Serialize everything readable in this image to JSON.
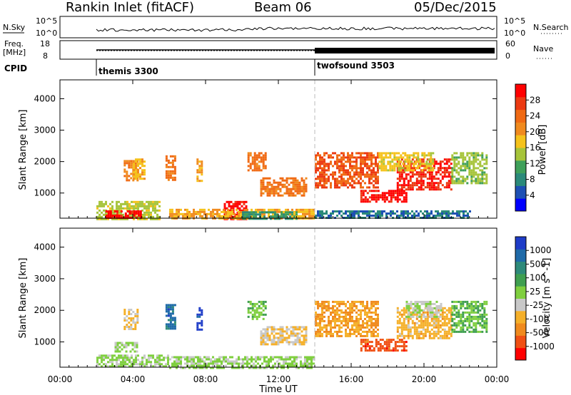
{
  "header": {
    "station": "Rankin Inlet (fitACF)",
    "beam": "Beam 06",
    "date": "05/Dec/2015"
  },
  "top_panels": {
    "nsky_label": "N.Sky",
    "nsky_ticks": [
      "10^5",
      "10^0"
    ],
    "nsearch_label": "N.Search",
    "nsearch_ticks": [
      "10^5",
      "10^0"
    ],
    "freq_label": "Freq.",
    "freq_unit": "[MHz]",
    "freq_ticks": [
      "18",
      "8"
    ],
    "nave_label": "Nave",
    "nave_ticks": [
      "60",
      "0"
    ],
    "cpid_label": "CPID",
    "cpid_segments": [
      {
        "name": "themis 3300",
        "start_hour": 2.0
      },
      {
        "name": "twofsound 3503",
        "start_hour": 14.0
      }
    ]
  },
  "chart_data": [
    {
      "type": "heatmap",
      "title": "Power",
      "ylabel": "Slant Range [km]",
      "xlabel": "",
      "xlim_hours": [
        0,
        24
      ],
      "ylim": [
        200,
        4600
      ],
      "yticks": [
        "1000",
        "2000",
        "3000",
        "4000"
      ],
      "colorbar": {
        "label": "Power [dB]",
        "ticks": [
          "4",
          "8",
          "12",
          "16",
          "20",
          "24",
          "28"
        ],
        "range": [
          0,
          30
        ],
        "colors": [
          "#0000ff",
          "#1e50b4",
          "#2b8a7a",
          "#3fa05a",
          "#a6c43a",
          "#f5c21b",
          "#f08a1e",
          "#f06a14",
          "#ec3a12",
          "#ff0000"
        ]
      },
      "regions": [
        {
          "t": [
            2.0,
            5.5
          ],
          "r": [
            200,
            750
          ],
          "v": 14
        },
        {
          "t": [
            2.5,
            4.5
          ],
          "r": [
            200,
            450
          ],
          "v": 28
        },
        {
          "t": [
            9.0,
            10.2
          ],
          "r": [
            200,
            750
          ],
          "v": 28
        },
        {
          "t": [
            6.0,
            14.0
          ],
          "r": [
            200,
            500
          ],
          "v": 18
        },
        {
          "t": [
            10.0,
            13.0
          ],
          "r": [
            200,
            420
          ],
          "v": 9
        },
        {
          "t": [
            14.0,
            22.5
          ],
          "r": [
            200,
            450
          ],
          "v": 6
        },
        {
          "t": [
            3.5,
            4.3
          ],
          "r": [
            1400,
            2050
          ],
          "v": 20
        },
        {
          "t": [
            4.0,
            4.7
          ],
          "r": [
            1450,
            2100
          ],
          "v": 17
        },
        {
          "t": [
            5.8,
            6.3
          ],
          "r": [
            1400,
            2200
          ],
          "v": 22
        },
        {
          "t": [
            7.5,
            7.8
          ],
          "r": [
            1400,
            2100
          ],
          "v": 18
        },
        {
          "t": [
            10.3,
            11.3
          ],
          "r": [
            1700,
            2300
          ],
          "v": 22
        },
        {
          "t": [
            11.0,
            13.5
          ],
          "r": [
            900,
            1500
          ],
          "v": 22
        },
        {
          "t": [
            14.0,
            17.5
          ],
          "r": [
            1200,
            2300
          ],
          "v": 24
        },
        {
          "t": [
            16.5,
            19.0
          ],
          "r": [
            700,
            1100
          ],
          "v": 28
        },
        {
          "t": [
            18.5,
            21.5
          ],
          "r": [
            1100,
            2100
          ],
          "v": 27
        },
        {
          "t": [
            17.5,
            20.5
          ],
          "r": [
            1700,
            2300
          ],
          "v": 16
        },
        {
          "t": [
            21.5,
            23.5
          ],
          "r": [
            1300,
            2300
          ],
          "v": 13
        }
      ]
    },
    {
      "type": "heatmap",
      "title": "Velocity",
      "ylabel": "Slant Range [km]",
      "xlabel": "Time UT",
      "xlim_hours": [
        0,
        24
      ],
      "xticks": [
        "00:00",
        "04:00",
        "08:00",
        "12:00",
        "16:00",
        "20:00",
        "00:00"
      ],
      "ylim": [
        200,
        4600
      ],
      "yticks": [
        "1000",
        "2000",
        "3000",
        "4000"
      ],
      "colorbar": {
        "label": "Velocity [m s^-1]",
        "ticks": [
          "1000",
          "500",
          "100",
          "25",
          "-25",
          "-100",
          "-500",
          "-1000"
        ],
        "range": [
          -1000,
          1000
        ],
        "colors": [
          "#ff0000",
          "#f05014",
          "#f08a1e",
          "#f5b02a",
          "#c8c8c8",
          "#7fcf3f",
          "#3f9f50",
          "#2e8a7a",
          "#1f6aa8",
          "#1e3cc8"
        ]
      },
      "regions": [
        {
          "t": [
            2.0,
            6.0
          ],
          "r": [
            200,
            600
          ],
          "v": 60
        },
        {
          "t": [
            3.0,
            4.2
          ],
          "r": [
            700,
            1000
          ],
          "v": 0
        },
        {
          "t": [
            6.0,
            14.0
          ],
          "r": [
            200,
            550
          ],
          "v": 40
        },
        {
          "t": [
            3.5,
            4.3
          ],
          "r": [
            1400,
            2050
          ],
          "v": -250
        },
        {
          "t": [
            5.8,
            6.3
          ],
          "r": [
            1400,
            2200
          ],
          "v": 700
        },
        {
          "t": [
            7.5,
            7.8
          ],
          "r": [
            1400,
            2100
          ],
          "v": 900
        },
        {
          "t": [
            10.3,
            11.3
          ],
          "r": [
            1700,
            2300
          ],
          "v": 150
        },
        {
          "t": [
            11.0,
            13.5
          ],
          "r": [
            900,
            1500
          ],
          "v": -200
        },
        {
          "t": [
            14.0,
            17.5
          ],
          "r": [
            1200,
            2300
          ],
          "v": -400
        },
        {
          "t": [
            16.5,
            19.0
          ],
          "r": [
            700,
            1100
          ],
          "v": -700
        },
        {
          "t": [
            18.5,
            21.5
          ],
          "r": [
            1100,
            2100
          ],
          "v": -300
        },
        {
          "t": [
            19.0,
            21.0
          ],
          "r": [
            1800,
            2300
          ],
          "v": 0
        },
        {
          "t": [
            21.5,
            23.5
          ],
          "r": [
            1300,
            2300
          ],
          "v": 200
        }
      ]
    }
  ]
}
